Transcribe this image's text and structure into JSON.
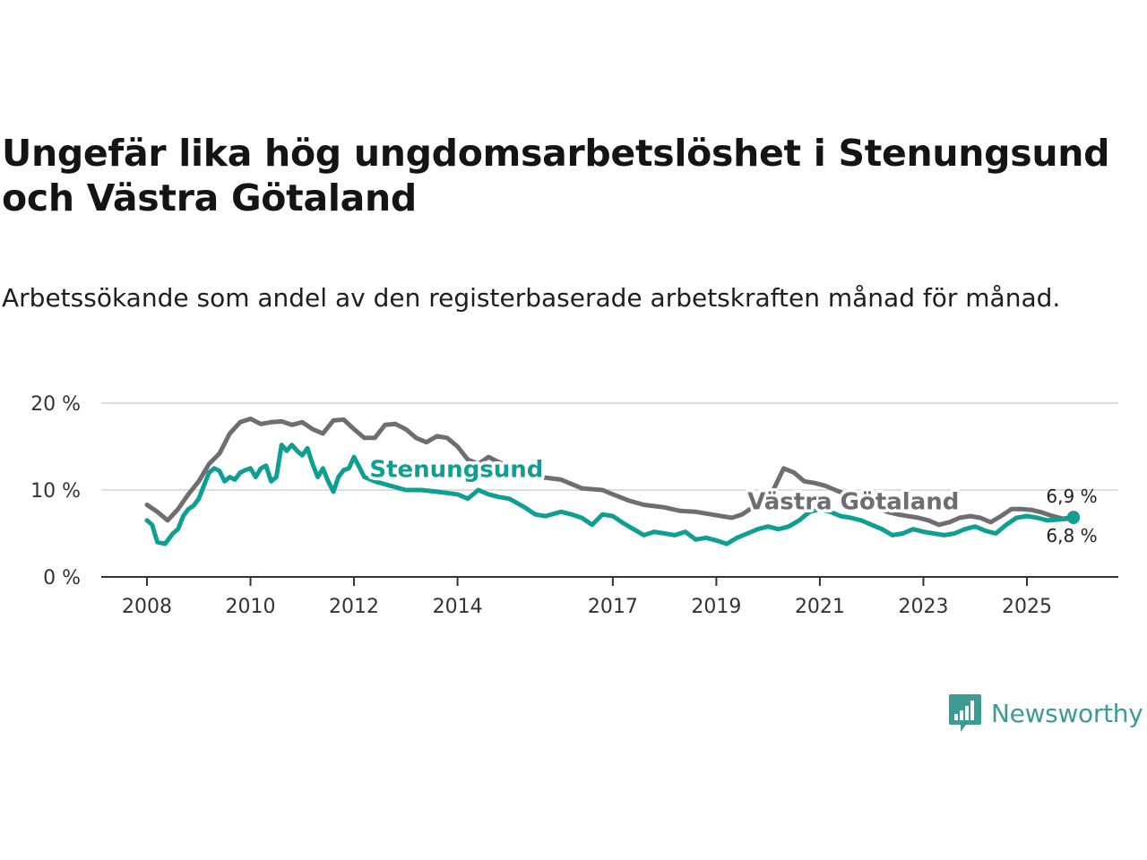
{
  "title": "Ungefär lika hög ungdomsarbetslöshet i Stenungsund och Västra Götaland",
  "subtitle": "Arbetssökande som andel av den registerbaserade arbetskraften månad för månad.",
  "brand": {
    "name": "Newsworthy",
    "icon": "newsworthy-logo-icon",
    "color": "#3d9b94"
  },
  "chart_data": {
    "type": "line",
    "title": "Ungefär lika hög ungdomsarbetslöshet i Stenungsund och Västra Götaland",
    "xlabel": "",
    "ylabel": "",
    "ylim": [
      0,
      20
    ],
    "xlim": [
      2007.8,
      2026.6
    ],
    "grid": true,
    "y_ticks": [
      {
        "value": 20,
        "label": "20 %"
      },
      {
        "value": 10,
        "label": "10 %"
      },
      {
        "value": 0,
        "label": "0 %"
      }
    ],
    "x_ticks": [
      {
        "value": 2008,
        "label": "2008"
      },
      {
        "value": 2010,
        "label": "2010"
      },
      {
        "value": 2012,
        "label": "2012"
      },
      {
        "value": 2014,
        "label": "2014"
      },
      {
        "value": 2017,
        "label": "2017"
      },
      {
        "value": 2019,
        "label": "2019"
      },
      {
        "value": 2021,
        "label": "2021"
      },
      {
        "value": 2023,
        "label": "2023"
      },
      {
        "value": 2025,
        "label": "2025"
      }
    ],
    "series": [
      {
        "name": "Västra Götaland",
        "color": "#6e6d72",
        "label": "Västra Götaland",
        "label_at": {
          "x": 2019.6,
          "y": 7.8
        },
        "end_label": "6,9 %",
        "x": [
          2008.0,
          2008.2,
          2008.4,
          2008.6,
          2008.8,
          2009.0,
          2009.2,
          2009.4,
          2009.6,
          2009.8,
          2010.0,
          2010.2,
          2010.4,
          2010.6,
          2010.8,
          2011.0,
          2011.2,
          2011.4,
          2011.6,
          2011.8,
          2012.0,
          2012.2,
          2012.4,
          2012.6,
          2012.8,
          2013.0,
          2013.2,
          2013.4,
          2013.6,
          2013.8,
          2014.0,
          2014.2,
          2014.4,
          2014.6,
          2014.8,
          2015.0,
          2015.3,
          2015.6,
          2016.0,
          2016.4,
          2016.8,
          2017.0,
          2017.3,
          2017.6,
          2018.0,
          2018.3,
          2018.6,
          2018.9,
          2019.1,
          2019.3,
          2019.5,
          2019.7,
          2019.9,
          2020.1,
          2020.3,
          2020.5,
          2020.7,
          2020.9,
          2021.1,
          2021.3,
          2021.5,
          2021.7,
          2021.9,
          2022.1,
          2022.3,
          2022.5,
          2022.7,
          2022.9,
          2023.1,
          2023.3,
          2023.5,
          2023.7,
          2023.9,
          2024.1,
          2024.3,
          2024.5,
          2024.7,
          2024.9,
          2025.1,
          2025.3,
          2025.5,
          2025.7,
          2025.9
        ],
        "y": [
          8.3,
          7.5,
          6.5,
          7.8,
          9.5,
          11.0,
          13.0,
          14.2,
          16.5,
          17.8,
          18.2,
          17.6,
          17.8,
          17.9,
          17.5,
          17.8,
          17.0,
          16.5,
          18.0,
          18.1,
          17.0,
          16.0,
          16.0,
          17.5,
          17.6,
          17.0,
          16.0,
          15.5,
          16.2,
          16.0,
          15.0,
          13.5,
          13.0,
          13.8,
          13.2,
          12.8,
          12.2,
          11.5,
          11.2,
          10.2,
          10.0,
          9.5,
          8.8,
          8.3,
          8.0,
          7.6,
          7.5,
          7.2,
          7.0,
          6.8,
          7.2,
          8.0,
          8.5,
          10.0,
          12.5,
          12.0,
          11.0,
          10.8,
          10.5,
          10.0,
          9.5,
          9.0,
          8.5,
          8.0,
          7.5,
          7.2,
          7.0,
          6.8,
          6.5,
          6.0,
          6.3,
          6.8,
          7.0,
          6.8,
          6.3,
          7.0,
          7.8,
          7.8,
          7.7,
          7.4,
          7.0,
          6.7,
          6.9
        ]
      },
      {
        "name": "Stenungsund",
        "color": "#0f9f92",
        "label": "Stenungsund",
        "label_at": {
          "x": 2012.3,
          "y": 11.5
        },
        "end_label": "6,8 %",
        "x": [
          2008.0,
          2008.1,
          2008.2,
          2008.35,
          2008.5,
          2008.6,
          2008.7,
          2008.8,
          2008.9,
          2009.0,
          2009.1,
          2009.2,
          2009.3,
          2009.4,
          2009.5,
          2009.6,
          2009.7,
          2009.8,
          2009.9,
          2010.0,
          2010.1,
          2010.2,
          2010.3,
          2010.4,
          2010.5,
          2010.6,
          2010.7,
          2010.8,
          2010.9,
          2011.0,
          2011.1,
          2011.2,
          2011.3,
          2011.4,
          2011.5,
          2011.6,
          2011.7,
          2011.8,
          2011.9,
          2012.0,
          2012.2,
          2012.4,
          2012.7,
          2013.0,
          2013.3,
          2013.6,
          2014.0,
          2014.2,
          2014.4,
          2014.6,
          2014.8,
          2015.0,
          2015.3,
          2015.5,
          2015.7,
          2016.0,
          2016.2,
          2016.4,
          2016.6,
          2016.8,
          2017.0,
          2017.2,
          2017.4,
          2017.6,
          2017.8,
          2018.0,
          2018.2,
          2018.4,
          2018.6,
          2018.8,
          2019.0,
          2019.2,
          2019.4,
          2019.6,
          2019.8,
          2020.0,
          2020.2,
          2020.4,
          2020.6,
          2020.8,
          2021.0,
          2021.2,
          2021.4,
          2021.6,
          2021.8,
          2022.0,
          2022.2,
          2022.4,
          2022.6,
          2022.8,
          2023.0,
          2023.2,
          2023.4,
          2023.6,
          2023.8,
          2024.0,
          2024.2,
          2024.4,
          2024.6,
          2024.8,
          2025.0,
          2025.2,
          2025.4,
          2025.6,
          2025.8,
          2025.9
        ],
        "y": [
          6.5,
          6.0,
          4.0,
          3.8,
          5.0,
          5.5,
          7.0,
          7.8,
          8.2,
          9.0,
          10.5,
          12.0,
          12.5,
          12.2,
          11.0,
          11.5,
          11.2,
          12.0,
          12.3,
          12.5,
          11.5,
          12.5,
          12.8,
          11.0,
          11.5,
          15.2,
          14.5,
          15.2,
          14.5,
          14.0,
          14.8,
          13.0,
          11.5,
          12.5,
          11.0,
          9.8,
          11.5,
          12.3,
          12.5,
          13.8,
          11.5,
          11.0,
          10.5,
          10.0,
          10.0,
          9.8,
          9.5,
          9.0,
          10.0,
          9.5,
          9.2,
          9.0,
          8.0,
          7.2,
          7.0,
          7.5,
          7.2,
          6.8,
          6.0,
          7.2,
          7.0,
          6.2,
          5.5,
          4.8,
          5.2,
          5.0,
          4.8,
          5.2,
          4.3,
          4.5,
          4.2,
          3.8,
          4.5,
          5.0,
          5.5,
          5.8,
          5.5,
          5.8,
          6.5,
          7.5,
          7.8,
          7.5,
          7.0,
          6.8,
          6.5,
          6.0,
          5.5,
          4.8,
          5.0,
          5.5,
          5.2,
          5.0,
          4.8,
          5.0,
          5.5,
          5.8,
          5.3,
          5.0,
          6.0,
          6.8,
          7.0,
          6.8,
          6.5,
          6.6,
          6.7,
          6.8
        ]
      }
    ]
  }
}
